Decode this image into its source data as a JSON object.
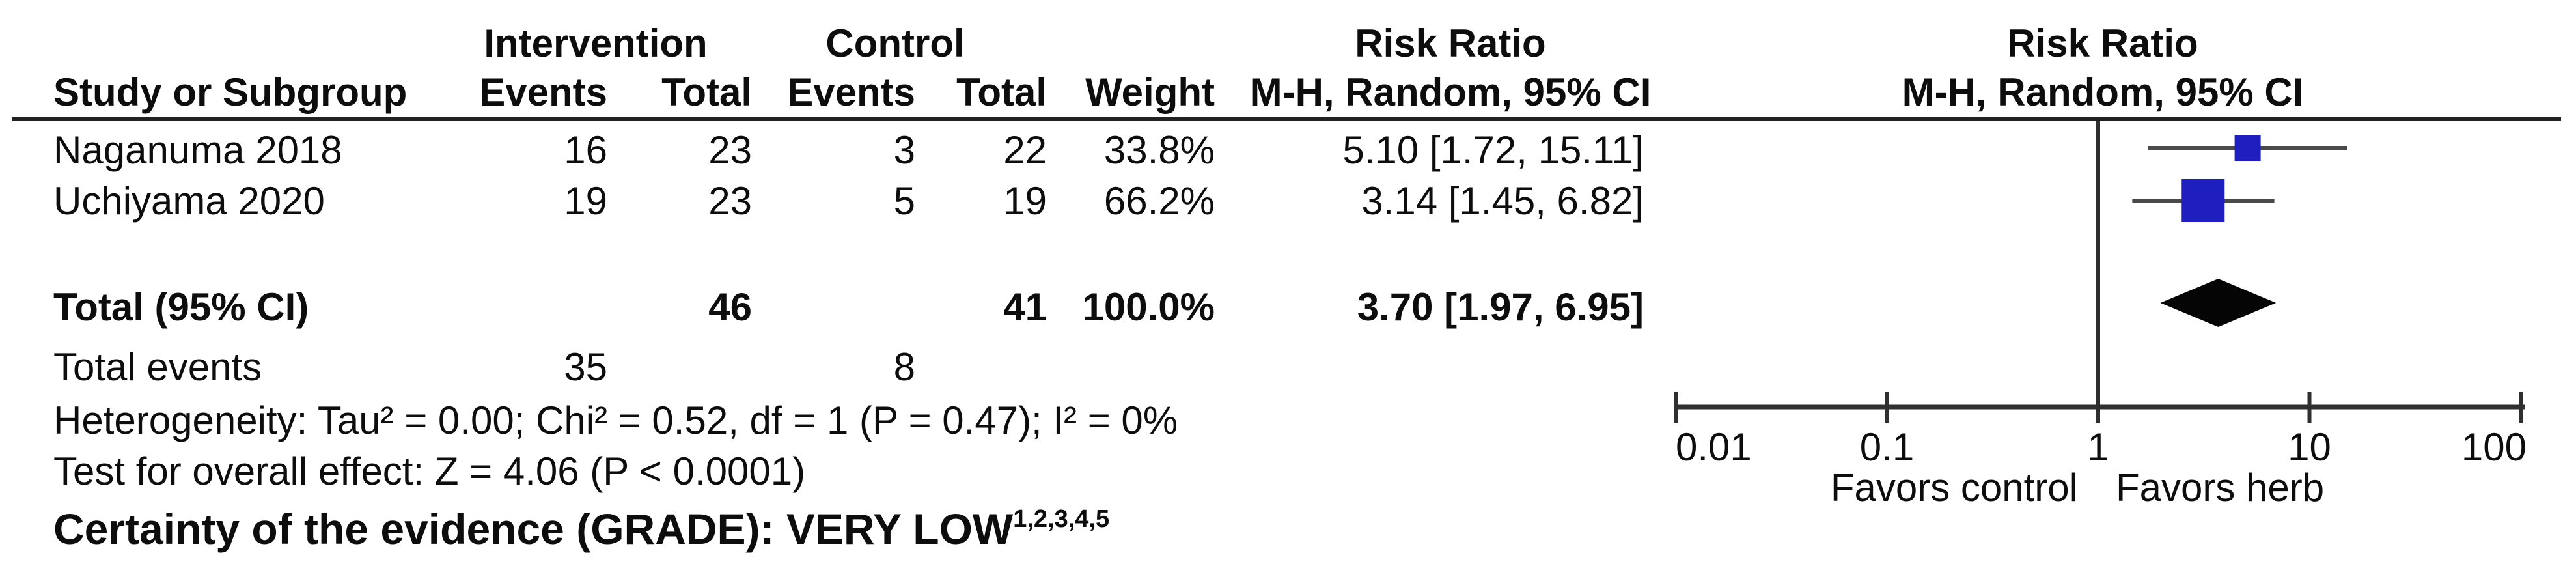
{
  "table": {
    "group_headers": {
      "intervention": "Intervention",
      "control": "Control"
    },
    "effect_col_header": {
      "title": "Risk Ratio",
      "subtitle": "M-H, Random, 95% CI"
    },
    "plot_col_header": {
      "title": "Risk Ratio",
      "subtitle": "M-H, Random, 95% CI"
    },
    "columns": {
      "study": "Study or Subgroup",
      "int_events": "Events",
      "int_total": "Total",
      "ctrl_events": "Events",
      "ctrl_total": "Total",
      "weight": "Weight"
    },
    "studies": [
      {
        "name": "Naganuma 2018",
        "int_events": "16",
        "int_total": "23",
        "ctrl_events": "3",
        "ctrl_total": "22",
        "weight": "33.8%",
        "effect": "5.10 [1.72, 15.11]"
      },
      {
        "name": "Uchiyama 2020",
        "int_events": "19",
        "int_total": "23",
        "ctrl_events": "5",
        "ctrl_total": "19",
        "weight": "66.2%",
        "effect": "3.14 [1.45, 6.82]"
      }
    ],
    "total_row": {
      "label": "Total (95% CI)",
      "int_total": "46",
      "ctrl_total": "41",
      "weight": "100.0%",
      "effect": "3.70 [1.97, 6.95]"
    },
    "total_events_row": {
      "label": "Total events",
      "int_events": "35",
      "ctrl_events": "8"
    }
  },
  "footer": {
    "heterogeneity": "Heterogeneity: Tau² = 0.00; Chi² = 0.52, df = 1 (P = 0.47); I² = 0%",
    "overall_effect": "Test for overall effect: Z = 4.06 (P < 0.0001)",
    "grade_label": "Certainty of the evidence (GRADE): VERY LOW",
    "grade_superscript": "1,2,3,4,5"
  },
  "chart_data": {
    "type": "forest",
    "effect_measure": "Risk Ratio",
    "method": "M-H, Random, 95% CI",
    "scale": "log10",
    "axis": {
      "min": 0.01,
      "max": 100,
      "ticks": [
        0.01,
        0.1,
        1,
        10,
        100
      ],
      "tick_labels": [
        "0.01",
        "0.1",
        "1",
        "10",
        "100"
      ]
    },
    "xlabel_left": "Favors control",
    "xlabel_right": "Favors herb",
    "studies": [
      {
        "name": "Naganuma 2018",
        "rr": 5.1,
        "ci_low": 1.72,
        "ci_high": 15.11,
        "weight_pct": 33.8
      },
      {
        "name": "Uchiyama 2020",
        "rr": 3.14,
        "ci_low": 1.45,
        "ci_high": 6.82,
        "weight_pct": 66.2
      }
    ],
    "total": {
      "rr": 3.7,
      "ci_low": 1.97,
      "ci_high": 6.95
    },
    "marker_color": "#1f1fc0",
    "diamond_color": "#050505",
    "line_color": "#4a4a4a",
    "axis_color": "#2f2f2f"
  }
}
